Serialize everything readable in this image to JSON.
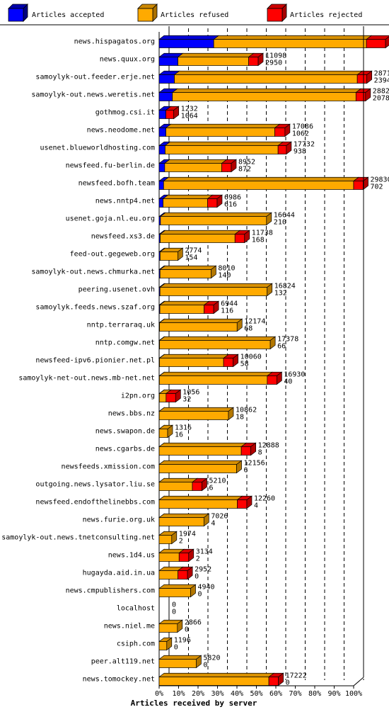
{
  "legend": {
    "accepted": "Articles accepted",
    "refused": "Articles refused",
    "rejected": "Articles rejected"
  },
  "colors": {
    "accepted": "#0000ff",
    "refused": "#ffaa00",
    "rejected": "#ff0000"
  },
  "chart_data": {
    "type": "bar",
    "orientation": "horizontal",
    "stacked": true,
    "xlabel": "Articles received by server",
    "xlim": [
      0,
      100
    ],
    "x_ticks": [
      "0%",
      "10%",
      "20%",
      "30%",
      "40%",
      "50%",
      "60%",
      "70%",
      "80%",
      "90%",
      "100%"
    ],
    "scale_max": 30532,
    "grid": true,
    "legend_position": "top",
    "servers": [
      {
        "name": "news.hispagatos.org",
        "accepted": 8572,
        "refused": 23968,
        "rejected": 3000,
        "label_top": "23968",
        "label_bottom": "8572"
      },
      {
        "name": "news.quux.org",
        "accepted": 2950,
        "refused": 11098,
        "rejected": 1500,
        "label_top": "11098",
        "label_bottom": "2950"
      },
      {
        "name": "samoylyk-out.feeder.erje.net",
        "accepted": 2394,
        "refused": 28712,
        "rejected": 1500,
        "label_top": "28712",
        "label_bottom": "2394"
      },
      {
        "name": "samoylyk-out.news.weretis.net",
        "accepted": 2078,
        "refused": 28820,
        "rejected": 1500,
        "label_top": "28820",
        "label_bottom": "2078"
      },
      {
        "name": "gothmog.csi.it",
        "accepted": 1064,
        "refused": 0,
        "rejected": 1232,
        "label_top": "1232",
        "label_bottom": "1064"
      },
      {
        "name": "news.neodome.net",
        "accepted": 1062,
        "refused": 17086,
        "rejected": 1600,
        "label_top": "17086",
        "label_bottom": "1062"
      },
      {
        "name": "usenet.blueworldhosting.com",
        "accepted": 938,
        "refused": 17732,
        "rejected": 1300,
        "label_top": "17732",
        "label_bottom": "938"
      },
      {
        "name": "newsfeed.fu-berlin.de",
        "accepted": 872,
        "refused": 8952,
        "rejected": 1500,
        "label_top": "8952",
        "label_bottom": "872"
      },
      {
        "name": "newsfeed.bofh.team",
        "accepted": 702,
        "refused": 29830,
        "rejected": 1500,
        "label_top": "29830",
        "label_bottom": "702"
      },
      {
        "name": "news.nntp4.net",
        "accepted": 616,
        "refused": 6986,
        "rejected": 1500,
        "label_top": "6986",
        "label_bottom": "616"
      },
      {
        "name": "usenet.goja.nl.eu.org",
        "accepted": 210,
        "refused": 16644,
        "rejected": 0,
        "label_top": "16644",
        "label_bottom": "210"
      },
      {
        "name": "newsfeed.xs3.de",
        "accepted": 168,
        "refused": 11738,
        "rejected": 1500,
        "label_top": "11738",
        "label_bottom": "168"
      },
      {
        "name": "feed-out.gegeweb.org",
        "accepted": 154,
        "refused": 2774,
        "rejected": 0,
        "label_top": "2774",
        "label_bottom": "154"
      },
      {
        "name": "samoylyk-out.news.chmurka.net",
        "accepted": 140,
        "refused": 8010,
        "rejected": 0,
        "label_top": "8010",
        "label_bottom": "140"
      },
      {
        "name": "peering.usenet.ovh",
        "accepted": 132,
        "refused": 16824,
        "rejected": 0,
        "label_top": "16824",
        "label_bottom": "132"
      },
      {
        "name": "samoylyk.feeds.news.szaf.org",
        "accepted": 116,
        "refused": 6944,
        "rejected": 1500,
        "label_top": "6944",
        "label_bottom": "116"
      },
      {
        "name": "nntp.terraraq.uk",
        "accepted": 68,
        "refused": 12174,
        "rejected": 0,
        "label_top": "12174",
        "label_bottom": "68"
      },
      {
        "name": "nntp.comgw.net",
        "accepted": 66,
        "refused": 17378,
        "rejected": 0,
        "label_top": "17378",
        "label_bottom": "66"
      },
      {
        "name": "newsfeed-ipv6.pionier.net.pl",
        "accepted": 58,
        "refused": 10060,
        "rejected": 1500,
        "label_top": "10060",
        "label_bottom": "58"
      },
      {
        "name": "samoylyk-net-out.news.mb-net.net",
        "accepted": 40,
        "refused": 16930,
        "rejected": 1500,
        "label_top": "16930",
        "label_bottom": "40"
      },
      {
        "name": "i2pn.org",
        "accepted": 32,
        "refused": 1056,
        "rejected": 1500,
        "label_top": "1056",
        "label_bottom": "32"
      },
      {
        "name": "news.bbs.nz",
        "accepted": 18,
        "refused": 10862,
        "rejected": 0,
        "label_top": "10862",
        "label_bottom": "18"
      },
      {
        "name": "news.swapon.de",
        "accepted": 16,
        "refused": 1316,
        "rejected": 0,
        "label_top": "1316",
        "label_bottom": "16"
      },
      {
        "name": "news.cgarbs.de",
        "accepted": 8,
        "refused": 12888,
        "rejected": 1500,
        "label_top": "12888",
        "label_bottom": "8"
      },
      {
        "name": "newsfeeds.xmission.com",
        "accepted": 6,
        "refused": 12156,
        "rejected": 0,
        "label_top": "12156",
        "label_bottom": "6"
      },
      {
        "name": "outgoing.news.lysator.liu.se",
        "accepted": 6,
        "refused": 5210,
        "rejected": 1500,
        "label_top": "5210",
        "label_bottom": "6"
      },
      {
        "name": "newsfeed.endofthelinebbs.com",
        "accepted": 4,
        "refused": 12260,
        "rejected": 1500,
        "label_top": "12260",
        "label_bottom": "4"
      },
      {
        "name": "news.furie.org.uk",
        "accepted": 4,
        "refused": 7026,
        "rejected": 0,
        "label_top": "7026",
        "label_bottom": "4"
      },
      {
        "name": "samoylyk-out.news.tnetconsulting.net",
        "accepted": 2,
        "refused": 1974,
        "rejected": 0,
        "label_top": "1974",
        "label_bottom": "2"
      },
      {
        "name": "news.1d4.us",
        "accepted": 2,
        "refused": 3134,
        "rejected": 1500,
        "label_top": "3134",
        "label_bottom": "2"
      },
      {
        "name": "hugayda.aid.in.ua",
        "accepted": 0,
        "refused": 2952,
        "rejected": 1500,
        "label_top": "2952",
        "label_bottom": "0"
      },
      {
        "name": "news.cmpublishers.com",
        "accepted": 0,
        "refused": 4940,
        "rejected": 0,
        "label_top": "4940",
        "label_bottom": "0"
      },
      {
        "name": "localhost",
        "accepted": 0,
        "refused": 0,
        "rejected": 0,
        "label_top": "0",
        "label_bottom": "0"
      },
      {
        "name": "news.niel.me",
        "accepted": 0,
        "refused": 2866,
        "rejected": 0,
        "label_top": "2866",
        "label_bottom": "0"
      },
      {
        "name": "csiph.com",
        "accepted": 0,
        "refused": 1196,
        "rejected": 0,
        "label_top": "1196",
        "label_bottom": "0"
      },
      {
        "name": "peer.alt119.net",
        "accepted": 0,
        "refused": 5820,
        "rejected": 0,
        "label_top": "5820",
        "label_bottom": "0"
      },
      {
        "name": "news.tomockey.net",
        "accepted": 0,
        "refused": 17222,
        "rejected": 1500,
        "label_top": "17222",
        "label_bottom": "0"
      }
    ]
  }
}
